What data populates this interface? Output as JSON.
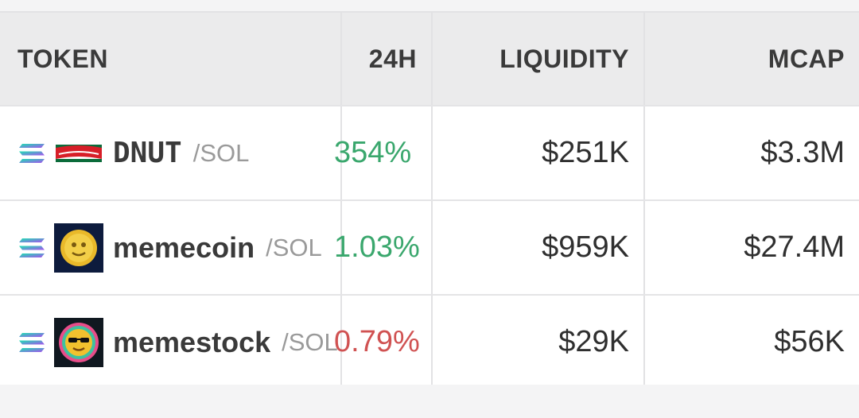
{
  "table": {
    "headers": {
      "token": "TOKEN",
      "change_24h": "24H",
      "liquidity": "LIQUIDITY",
      "mcap": "MCAP"
    },
    "rows": [
      {
        "chain_icon": "solana-icon",
        "logo_icon": "krispy-kreme-logo-icon",
        "symbol": "DNUT",
        "pair": "/SOL",
        "change_24h": "354%",
        "change_color": "#3aa76d",
        "liquidity": "$251K",
        "mcap": "$3.3M"
      },
      {
        "chain_icon": "solana-icon",
        "logo_icon": "memecoin-logo-icon",
        "symbol": "memecoin",
        "pair": "/SOL",
        "change_24h": "1.03%",
        "change_color": "#3aa76d",
        "liquidity": "$959K",
        "mcap": "$27.4M"
      },
      {
        "chain_icon": "solana-icon",
        "logo_icon": "memestock-logo-icon",
        "symbol": "memestock",
        "pair": "/SOL",
        "change_24h": "0.79%",
        "change_color": "#d05252",
        "liquidity": "$29K",
        "mcap": "$56K"
      }
    ]
  }
}
